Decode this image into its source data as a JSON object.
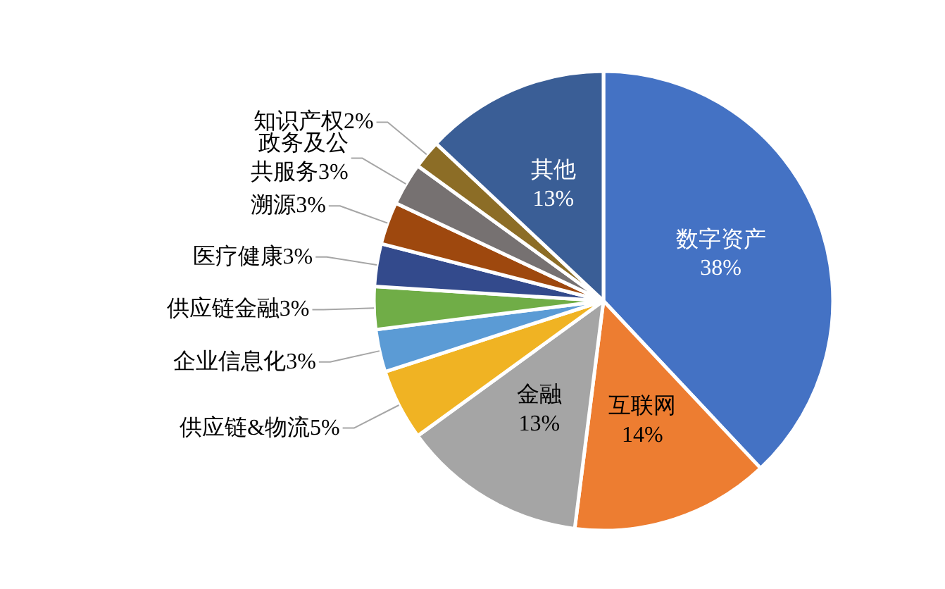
{
  "chart_data": {
    "type": "pie",
    "categories": [
      "数字资产",
      "互联网",
      "金融",
      "供应链&物流",
      "企业信息化",
      "供应链金融",
      "医疗健康",
      "溯源",
      "政务及公共服务",
      "知识产权",
      "其他"
    ],
    "values": [
      38,
      14,
      13,
      5,
      3,
      3,
      3,
      3,
      3,
      2,
      13
    ],
    "value_labels": [
      "38%",
      "14%",
      "13%",
      "5%",
      "3%",
      "3%",
      "3%",
      "3%",
      "3%",
      "2%",
      "13%"
    ],
    "colors": [
      "#4472c4",
      "#ed7d31",
      "#a5a5a5",
      "#f0b323",
      "#5b9bd5",
      "#70ad47",
      "#334a8c",
      "#9e480e",
      "#767171",
      "#8c6d26",
      "#3a5e96"
    ]
  }
}
